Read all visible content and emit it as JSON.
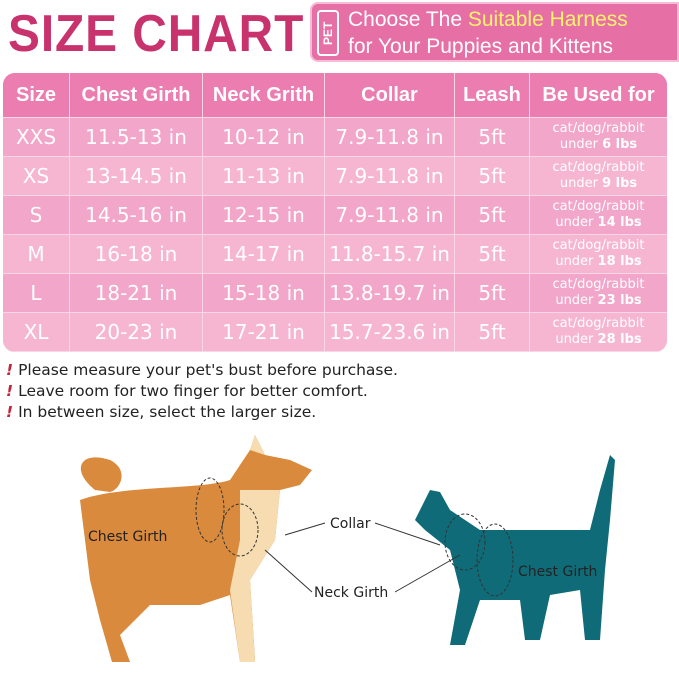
{
  "title": "SIZE CHART",
  "banner": {
    "badge": "PET",
    "line1_pre": "Choose The ",
    "line1_highlight": "Suitable Harness",
    "line2": "for Your Puppies and Kittens"
  },
  "table": {
    "headers": [
      "Size",
      "Chest Girth",
      "Neck Grith",
      "Collar",
      "Leash",
      "Be Used for"
    ],
    "rows": [
      {
        "size": "XXS",
        "chest": "11.5-13 in",
        "neck": "10-12 in",
        "collar": "7.9-11.8 in",
        "leash": "5ft",
        "use": "cat/dog/rabbit",
        "under": "under",
        "weight": "6 lbs"
      },
      {
        "size": "XS",
        "chest": "13-14.5 in",
        "neck": "11-13 in",
        "collar": "7.9-11.8 in",
        "leash": "5ft",
        "use": "cat/dog/rabbit",
        "under": "under",
        "weight": "9 lbs"
      },
      {
        "size": "S",
        "chest": "14.5-16 in",
        "neck": "12-15 in",
        "collar": "7.9-11.8 in",
        "leash": "5ft",
        "use": "cat/dog/rabbit",
        "under": "under",
        "weight": "14 lbs"
      },
      {
        "size": "M",
        "chest": "16-18 in",
        "neck": "14-17 in",
        "collar": "11.8-15.7 in",
        "leash": "5ft",
        "use": "cat/dog/rabbit",
        "under": "under",
        "weight": "18 lbs"
      },
      {
        "size": "L",
        "chest": "18-21 in",
        "neck": "15-18 in",
        "collar": "13.8-19.7 in",
        "leash": "5ft",
        "use": "cat/dog/rabbit",
        "under": "under",
        "weight": "23 lbs"
      },
      {
        "size": "XL",
        "chest": "20-23 in",
        "neck": "17-21 in",
        "collar": "15.7-23.6 in",
        "leash": "5ft",
        "use": "cat/dog/rabbit",
        "under": "under",
        "weight": "28 lbs"
      }
    ]
  },
  "notes": [
    "Please measure your pet's bust before purchase.",
    "Leave room for two finger for better comfort.",
    "In between size, select the larger size."
  ],
  "note_icon": "!",
  "diagram": {
    "dog_chest": "Chest Girth",
    "collar": "Collar",
    "neck": "Neck Girth",
    "cat_chest": "Chest Girth"
  },
  "colors": {
    "title": "#c8336e",
    "banner": "#e670a6",
    "highlight": "#fff36a",
    "dog": "#d98a3c",
    "cat": "#0f6b78"
  }
}
